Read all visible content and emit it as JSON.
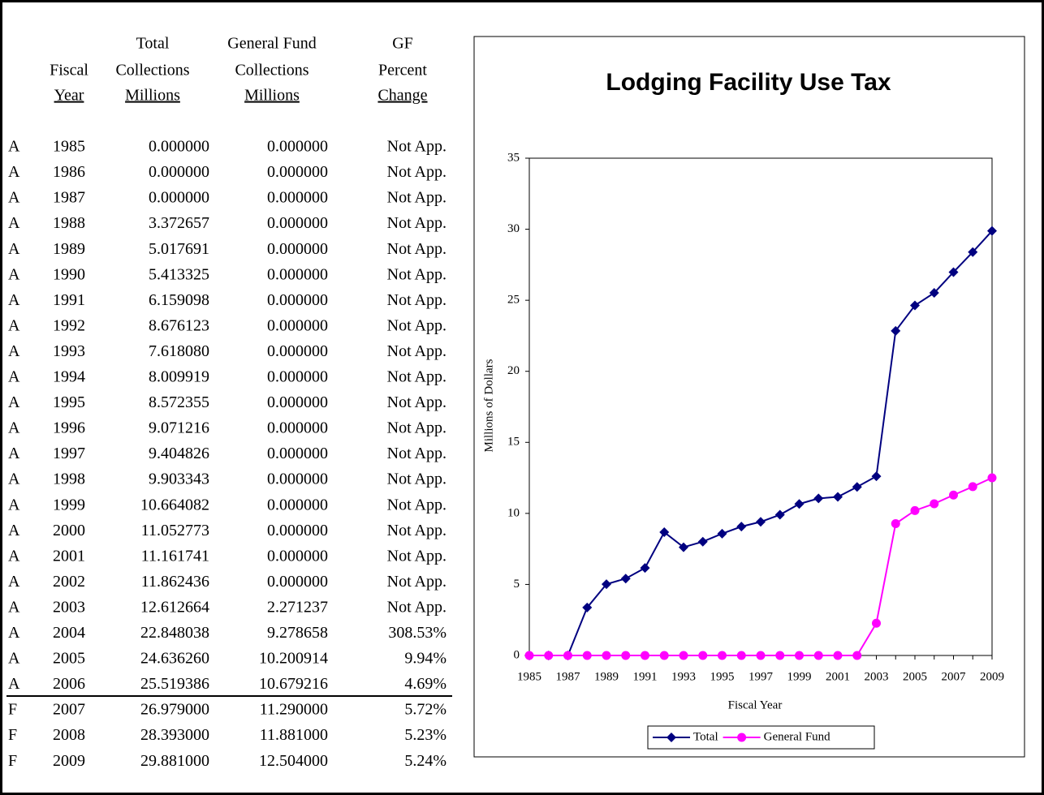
{
  "table": {
    "headers": [
      [],
      [
        "Fiscal",
        "Year"
      ],
      [
        "Total",
        "Collections",
        "Millions"
      ],
      [
        "General Fund",
        "Collections",
        "Millions"
      ],
      [
        "GF",
        "Percent",
        "Change"
      ]
    ],
    "rows": [
      [
        "A",
        "1985",
        "0.000000",
        "0.000000",
        "Not App."
      ],
      [
        "A",
        "1986",
        "0.000000",
        "0.000000",
        "Not App."
      ],
      [
        "A",
        "1987",
        "0.000000",
        "0.000000",
        "Not App."
      ],
      [
        "A",
        "1988",
        "3.372657",
        "0.000000",
        "Not App."
      ],
      [
        "A",
        "1989",
        "5.017691",
        "0.000000",
        "Not App."
      ],
      [
        "A",
        "1990",
        "5.413325",
        "0.000000",
        "Not App."
      ],
      [
        "A",
        "1991",
        "6.159098",
        "0.000000",
        "Not App."
      ],
      [
        "A",
        "1992",
        "8.676123",
        "0.000000",
        "Not App."
      ],
      [
        "A",
        "1993",
        "7.618080",
        "0.000000",
        "Not App."
      ],
      [
        "A",
        "1994",
        "8.009919",
        "0.000000",
        "Not App."
      ],
      [
        "A",
        "1995",
        "8.572355",
        "0.000000",
        "Not App."
      ],
      [
        "A",
        "1996",
        "9.071216",
        "0.000000",
        "Not App."
      ],
      [
        "A",
        "1997",
        "9.404826",
        "0.000000",
        "Not App."
      ],
      [
        "A",
        "1998",
        "9.903343",
        "0.000000",
        "Not App."
      ],
      [
        "A",
        "1999",
        "10.664082",
        "0.000000",
        "Not App."
      ],
      [
        "A",
        "2000",
        "11.052773",
        "0.000000",
        "Not App."
      ],
      [
        "A",
        "2001",
        "11.161741",
        "0.000000",
        "Not App."
      ],
      [
        "A",
        "2002",
        "11.862436",
        "0.000000",
        "Not App."
      ],
      [
        "A",
        "2003",
        "12.612664",
        "2.271237",
        "Not App."
      ],
      [
        "A",
        "2004",
        "22.848038",
        "9.278658",
        "308.53%"
      ],
      [
        "A",
        "2005",
        "24.636260",
        "10.200914",
        "9.94%"
      ],
      [
        "A",
        "2006",
        "25.519386",
        "10.679216",
        "4.69%"
      ],
      [
        "F",
        "2007",
        "26.979000",
        "11.290000",
        "5.72%"
      ],
      [
        "F",
        "2008",
        "28.393000",
        "11.881000",
        "5.23%"
      ],
      [
        "F",
        "2009",
        "29.881000",
        "12.504000",
        "5.24%"
      ]
    ]
  },
  "chart_data": {
    "type": "line",
    "title": "Lodging Facility Use Tax",
    "x_label": "Fiscal Year",
    "y_label": "Millions of Dollars",
    "categories": [
      1985,
      null,
      1987,
      null,
      1989,
      null,
      1991,
      null,
      1993,
      null,
      1995,
      null,
      1997,
      null,
      1999,
      null,
      2001,
      null,
      2003,
      null,
      2005,
      null,
      2007,
      null,
      2009
    ],
    "series": [
      {
        "name": "Total",
        "color": "#000080",
        "marker": "diamond",
        "values": [
          0,
          0,
          0,
          3.372657,
          5.017691,
          5.413325,
          6.159098,
          8.676123,
          7.61808,
          8.009919,
          8.572355,
          9.071216,
          9.404826,
          9.903343,
          10.664082,
          11.052773,
          11.161741,
          11.862436,
          12.612664,
          22.848038,
          24.63626,
          25.519386,
          26.979,
          28.393,
          29.881
        ]
      },
      {
        "name": "General Fund",
        "color": "#ff00ff",
        "marker": "circle",
        "values": [
          0,
          0,
          0,
          0,
          0,
          0,
          0,
          0,
          0,
          0,
          0,
          0,
          0,
          0,
          0,
          0,
          0,
          0,
          2.271237,
          9.278658,
          10.200914,
          10.679216,
          11.29,
          11.881,
          12.504
        ]
      }
    ],
    "ylim": [
      0,
      35
    ],
    "yticks": [
      0,
      5,
      10,
      15,
      20,
      25,
      30,
      35
    ],
    "grid": false,
    "legend": "bottom"
  }
}
